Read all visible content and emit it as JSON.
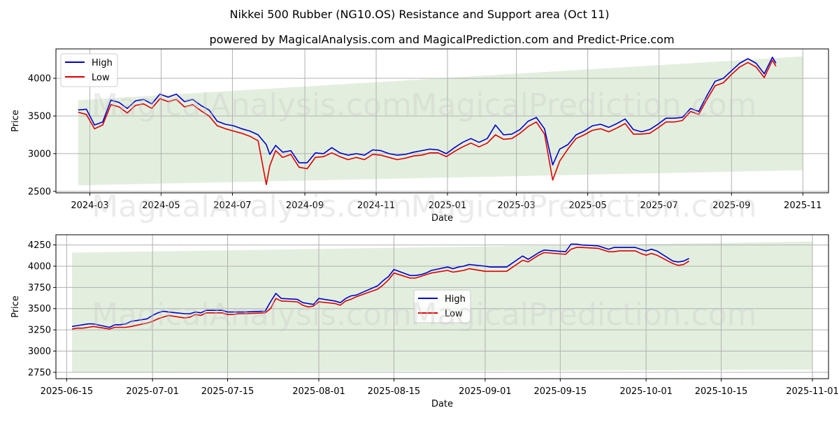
{
  "title": "Nikkei 500 Rubber (NG10.OS) Resistance and Support area (Oct 11)",
  "subtitle": "powered by MagicalAnalysis.com and MagicalPrediction.com and Predict-Price.com",
  "watermarks": [
    "MagicalAnalysis.com",
    "MagicalPrediction.com"
  ],
  "colors": {
    "high": "#0000cc",
    "low": "#dd0000",
    "band": "#d9ead3",
    "grid": "#b0b0b0"
  },
  "chart_data": [
    {
      "type": "line",
      "xlabel": "Date",
      "ylabel": "Price",
      "legend": "upper left",
      "grid": true,
      "x_ticks": [
        "2024-03",
        "2024-05",
        "2024-07",
        "2024-09",
        "2024-11",
        "2025-01",
        "2025-03",
        "2025-05",
        "2025-07",
        "2025-09",
        "2025-11"
      ],
      "y_ticks": [
        2500,
        3000,
        3500,
        4000
      ],
      "xlim": [
        "2024-02-01",
        "2025-11-23"
      ],
      "ylim": [
        2480,
        4390
      ],
      "band": {
        "x": [
          "2024-02-20",
          "2025-11-01"
        ],
        "upper": [
          3710,
          4290
        ],
        "lower": [
          2580,
          2780
        ]
      },
      "dates": [
        "2024-02-20",
        "2024-02-27",
        "2024-03-05",
        "2024-03-12",
        "2024-03-19",
        "2024-03-26",
        "2024-04-02",
        "2024-04-09",
        "2024-04-16",
        "2024-04-23",
        "2024-04-30",
        "2024-05-07",
        "2024-05-14",
        "2024-05-21",
        "2024-05-28",
        "2024-06-04",
        "2024-06-11",
        "2024-06-18",
        "2024-06-25",
        "2024-07-02",
        "2024-07-09",
        "2024-07-16",
        "2024-07-23",
        "2024-07-30",
        "2024-08-02",
        "2024-08-05",
        "2024-08-07",
        "2024-08-13",
        "2024-08-20",
        "2024-08-27",
        "2024-09-03",
        "2024-09-10",
        "2024-09-17",
        "2024-09-24",
        "2024-10-01",
        "2024-10-08",
        "2024-10-15",
        "2024-10-22",
        "2024-10-29",
        "2024-11-05",
        "2024-11-12",
        "2024-11-19",
        "2024-11-26",
        "2024-12-03",
        "2024-12-10",
        "2024-12-17",
        "2024-12-24",
        "2024-12-31",
        "2025-01-07",
        "2025-01-14",
        "2025-01-21",
        "2025-01-28",
        "2025-02-04",
        "2025-02-11",
        "2025-02-18",
        "2025-02-25",
        "2025-03-04",
        "2025-03-11",
        "2025-03-18",
        "2025-03-25",
        "2025-04-01",
        "2025-04-07",
        "2025-04-14",
        "2025-04-21",
        "2025-04-28",
        "2025-05-05",
        "2025-05-12",
        "2025-05-19",
        "2025-05-26",
        "2025-06-02",
        "2025-06-09",
        "2025-06-16",
        "2025-06-23",
        "2025-06-30",
        "2025-07-07",
        "2025-07-14",
        "2025-07-21",
        "2025-07-28",
        "2025-08-04",
        "2025-08-11",
        "2025-08-18",
        "2025-08-25",
        "2025-09-01",
        "2025-09-08",
        "2025-09-15",
        "2025-09-22",
        "2025-09-29",
        "2025-10-06",
        "2025-10-09"
      ],
      "series": [
        {
          "name": "High",
          "values": [
            3580,
            3590,
            3380,
            3420,
            3710,
            3680,
            3600,
            3700,
            3720,
            3660,
            3790,
            3750,
            3790,
            3690,
            3720,
            3640,
            3580,
            3430,
            3390,
            3370,
            3330,
            3300,
            3250,
            3120,
            2990,
            3060,
            3110,
            3020,
            3040,
            2880,
            2880,
            3010,
            3000,
            3080,
            3010,
            2980,
            3000,
            2980,
            3050,
            3040,
            3000,
            2980,
            2990,
            3020,
            3040,
            3060,
            3050,
            3000,
            3080,
            3150,
            3200,
            3150,
            3200,
            3380,
            3250,
            3260,
            3320,
            3430,
            3480,
            3330,
            2850,
            3060,
            3120,
            3250,
            3300,
            3370,
            3390,
            3350,
            3400,
            3460,
            3320,
            3290,
            3320,
            3390,
            3470,
            3470,
            3480,
            3600,
            3560,
            3770,
            3960,
            4000,
            4100,
            4200,
            4260,
            4200,
            4060,
            4280,
            4200
          ]
        },
        {
          "name": "Low",
          "values": [
            3550,
            3520,
            3330,
            3380,
            3650,
            3620,
            3540,
            3640,
            3660,
            3600,
            3730,
            3690,
            3720,
            3620,
            3650,
            3570,
            3500,
            3370,
            3330,
            3300,
            3270,
            3230,
            3170,
            2590,
            2840,
            2960,
            3040,
            2950,
            2990,
            2820,
            2800,
            2950,
            2960,
            3010,
            2960,
            2920,
            2950,
            2920,
            2990,
            2980,
            2950,
            2920,
            2940,
            2970,
            2980,
            3010,
            3010,
            2960,
            3030,
            3090,
            3140,
            3090,
            3140,
            3250,
            3190,
            3200,
            3270,
            3360,
            3420,
            3260,
            2650,
            2900,
            3060,
            3200,
            3250,
            3310,
            3330,
            3290,
            3340,
            3400,
            3260,
            3260,
            3270,
            3340,
            3420,
            3420,
            3440,
            3560,
            3520,
            3720,
            3900,
            3940,
            4050,
            4150,
            4210,
            4150,
            4010,
            4240,
            4160
          ]
        }
      ]
    },
    {
      "type": "line",
      "xlabel": "Date",
      "ylabel": "Price",
      "legend": "center",
      "grid": true,
      "x_ticks": [
        "2025-06-15",
        "2025-07-01",
        "2025-07-15",
        "2025-08-01",
        "2025-08-15",
        "2025-09-01",
        "2025-09-15",
        "2025-10-01",
        "2025-10-15",
        "2025-11-01"
      ],
      "y_ticks": [
        2750,
        3000,
        3250,
        3500,
        3750,
        4000,
        4250
      ],
      "xlim": [
        "2025-06-13",
        "2025-11-04"
      ],
      "ylim": [
        2675,
        4370
      ],
      "band": {
        "x": [
          "2025-06-16",
          "2025-11-01"
        ],
        "upper": [
          4160,
          4290
        ],
        "lower": [
          2750,
          2780
        ]
      },
      "dates": [
        "2025-06-16",
        "2025-06-17",
        "2025-06-18",
        "2025-06-19",
        "2025-06-20",
        "2025-06-23",
        "2025-06-24",
        "2025-06-25",
        "2025-06-26",
        "2025-06-27",
        "2025-06-30",
        "2025-07-01",
        "2025-07-02",
        "2025-07-03",
        "2025-07-04",
        "2025-07-07",
        "2025-07-08",
        "2025-07-09",
        "2025-07-10",
        "2025-07-11",
        "2025-07-14",
        "2025-07-15",
        "2025-07-16",
        "2025-07-17",
        "2025-07-18",
        "2025-07-22",
        "2025-07-23",
        "2025-07-24",
        "2025-07-25",
        "2025-07-28",
        "2025-07-29",
        "2025-07-30",
        "2025-07-31",
        "2025-08-01",
        "2025-08-04",
        "2025-08-05",
        "2025-08-06",
        "2025-08-07",
        "2025-08-08",
        "2025-08-12",
        "2025-08-13",
        "2025-08-14",
        "2025-08-15",
        "2025-08-18",
        "2025-08-19",
        "2025-08-20",
        "2025-08-21",
        "2025-08-22",
        "2025-08-25",
        "2025-08-26",
        "2025-08-27",
        "2025-08-28",
        "2025-08-29",
        "2025-09-01",
        "2025-09-02",
        "2025-09-03",
        "2025-09-04",
        "2025-09-05",
        "2025-09-08",
        "2025-09-09",
        "2025-09-10",
        "2025-09-11",
        "2025-09-12",
        "2025-09-16",
        "2025-09-17",
        "2025-09-18",
        "2025-09-19",
        "2025-09-22",
        "2025-09-24",
        "2025-09-25",
        "2025-09-26",
        "2025-09-29",
        "2025-09-30",
        "2025-10-01",
        "2025-10-02",
        "2025-10-03",
        "2025-10-06",
        "2025-10-07",
        "2025-10-08",
        "2025-10-09"
      ],
      "series": [
        {
          "name": "High",
          "values": [
            3290,
            3300,
            3310,
            3320,
            3320,
            3280,
            3310,
            3310,
            3320,
            3350,
            3380,
            3420,
            3450,
            3470,
            3460,
            3440,
            3440,
            3460,
            3450,
            3480,
            3480,
            3460,
            3460,
            3460,
            3460,
            3470,
            3580,
            3680,
            3620,
            3610,
            3570,
            3560,
            3550,
            3620,
            3590,
            3570,
            3620,
            3650,
            3660,
            3770,
            3830,
            3880,
            3960,
            3890,
            3890,
            3900,
            3920,
            3950,
            3990,
            3970,
            3990,
            4000,
            4020,
            4000,
            3990,
            3990,
            3990,
            3990,
            4120,
            4080,
            4120,
            4160,
            4190,
            4170,
            4260,
            4260,
            4250,
            4240,
            4200,
            4220,
            4220,
            4220,
            4200,
            4180,
            4200,
            4180,
            4060,
            4050,
            4060,
            4090
          ]
        },
        {
          "name": "Low",
          "values": [
            3260,
            3270,
            3270,
            3280,
            3290,
            3260,
            3280,
            3280,
            3280,
            3290,
            3330,
            3350,
            3380,
            3400,
            3420,
            3390,
            3400,
            3430,
            3420,
            3450,
            3450,
            3430,
            3430,
            3440,
            3440,
            3450,
            3500,
            3620,
            3590,
            3580,
            3540,
            3520,
            3530,
            3580,
            3560,
            3540,
            3590,
            3610,
            3640,
            3730,
            3780,
            3840,
            3920,
            3860,
            3860,
            3880,
            3900,
            3920,
            3950,
            3930,
            3940,
            3950,
            3970,
            3940,
            3940,
            3940,
            3940,
            3940,
            4070,
            4050,
            4090,
            4130,
            4160,
            4140,
            4200,
            4220,
            4220,
            4210,
            4170,
            4170,
            4180,
            4180,
            4150,
            4130,
            4150,
            4130,
            4030,
            4010,
            4020,
            4060
          ]
        }
      ]
    }
  ]
}
